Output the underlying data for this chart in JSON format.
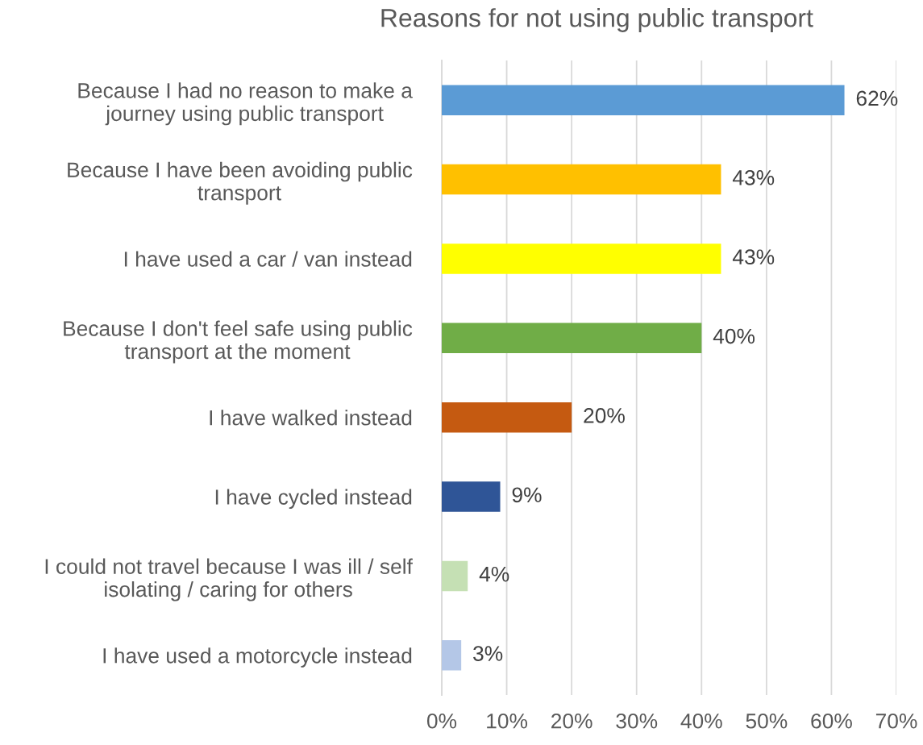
{
  "chart_data": {
    "type": "bar",
    "orientation": "horizontal",
    "title": "Reasons for not using public transport",
    "categories": [
      "Because I had no reason to make a\njourney using public transport",
      "Because I have been avoiding public\ntransport",
      "I have used a car / van instead",
      "Because I don't feel safe using public\ntransport at the moment",
      "I have walked instead",
      "I have cycled instead",
      "I could not travel because I was ill / self\nisolating / caring for others",
      "I have used a motorcycle instead"
    ],
    "values": [
      62,
      43,
      43,
      40,
      20,
      9,
      4,
      3
    ],
    "colors": [
      "#5b9bd5",
      "#ffc000",
      "#ffff00",
      "#70ad47",
      "#c55a11",
      "#2f5597",
      "#c5e0b4",
      "#b4c7e7"
    ],
    "value_labels": [
      "62%",
      "43%",
      "43%",
      "40%",
      "20%",
      "9%",
      "4%",
      "3%"
    ],
    "xlim": [
      0,
      70
    ],
    "xticks": [
      {
        "value": 0,
        "label": "0%"
      },
      {
        "value": 10,
        "label": "10%"
      },
      {
        "value": 20,
        "label": "20%"
      },
      {
        "value": 30,
        "label": "30%"
      },
      {
        "value": 40,
        "label": "40%"
      },
      {
        "value": 50,
        "label": "50%"
      },
      {
        "value": 60,
        "label": "60%"
      },
      {
        "value": 70,
        "label": "70%"
      }
    ],
    "grid": "x",
    "legend": false
  }
}
